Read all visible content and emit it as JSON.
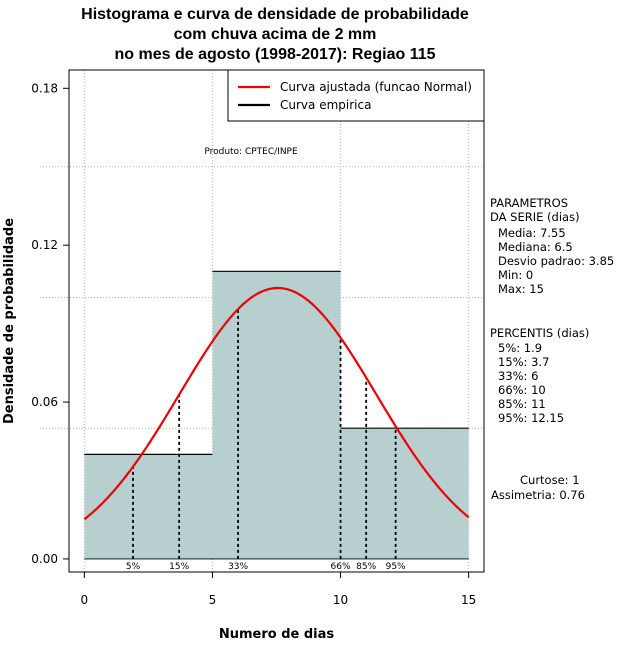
{
  "chart_data": {
    "type": "histogram",
    "title": [
      "Histograma e curva de densidade de probabilidade",
      "com chuva acima de 2 mm",
      "no mes de agosto (1998-2017): Regiao 115"
    ],
    "xlabel": "Numero de dias",
    "ylabel": "Densidade de probabilidade",
    "xlim": [
      -0.6,
      15.6
    ],
    "ylim": [
      -0.005,
      0.187
    ],
    "xticks": [
      0,
      5,
      10,
      15
    ],
    "yticks": [
      0.0,
      0.06,
      0.12,
      0.18
    ],
    "ytick_labels": [
      "0.00",
      "0.06",
      "0.12",
      "0.18"
    ],
    "grid_y": [
      0.05,
      0.1,
      0.15
    ],
    "bins": [
      {
        "from": 0,
        "to": 5,
        "density": 0.04
      },
      {
        "from": 5,
        "to": 10,
        "density": 0.11
      },
      {
        "from": 10,
        "to": 15,
        "density": 0.05
      }
    ],
    "normal_fit": {
      "mean": 7.55,
      "sd": 3.85,
      "from": 0,
      "to": 15
    },
    "percentile_lines": [
      {
        "label": "5%",
        "x": 1.9
      },
      {
        "label": "15%",
        "x": 3.7
      },
      {
        "label": "33%",
        "x": 6
      },
      {
        "label": "66%",
        "x": 10
      },
      {
        "label": "85%",
        "x": 11
      },
      {
        "label": "95%",
        "x": 12.15
      }
    ],
    "legend": {
      "position": "top-right",
      "entries": [
        {
          "label": "Curva ajustada (funcao Normal)",
          "color": "#ee0000"
        },
        {
          "label": "Curva empirica",
          "color": "#000000"
        }
      ]
    },
    "annotation": "Produto: CPTEC/INPE",
    "colors": {
      "bar_fill": "#b7cfcf",
      "curve": "#ee0000",
      "grid": "#b4b4b4"
    }
  },
  "side_panel": {
    "parametros_title": [
      "PARAMETROS",
      "DA SERIE (dias)"
    ],
    "parametros": [
      "Media: 7.55",
      "Mediana: 6.5",
      "Desvio padrao: 3.85",
      "Min: 0",
      "Max: 15"
    ],
    "percentis_title": "PERCENTIS (dias)",
    "percentis": [
      "5%: 1.9",
      "15%: 3.7",
      "33%: 6",
      "66%: 10",
      "85%: 11",
      "95%: 12.15"
    ],
    "curtose": "Curtose: 1",
    "assimetria": "Assimetria: 0.76"
  }
}
